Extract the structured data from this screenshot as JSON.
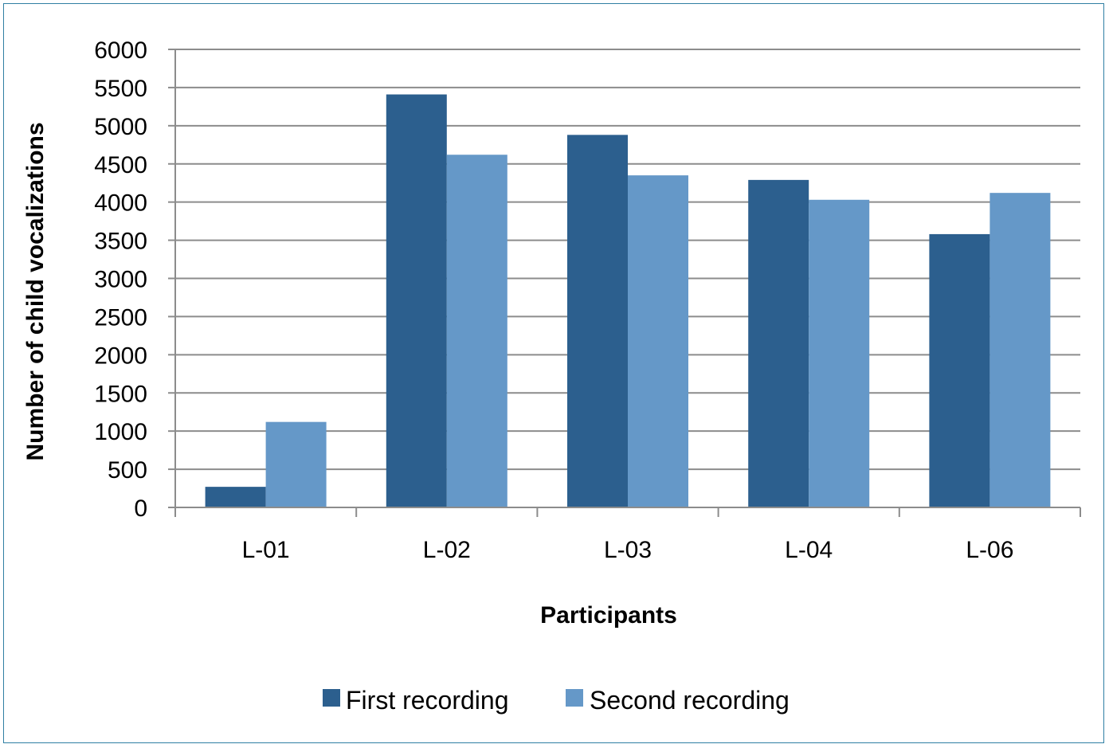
{
  "chart_data": {
    "type": "bar",
    "title": "",
    "xlabel": "Participants",
    "ylabel": "Number of child vocalizations",
    "categories": [
      "L-01",
      "L-02",
      "L-03",
      "L-04",
      "L-06"
    ],
    "series": [
      {
        "name": "First recording",
        "values": [
          270,
          5410,
          4880,
          4290,
          3580
        ],
        "color": "#2c5f8e"
      },
      {
        "name": "Second recording",
        "values": [
          1120,
          4620,
          4350,
          4030,
          4120
        ],
        "color": "#6598c8"
      }
    ],
    "yticks": [
      "0",
      "500",
      "1000",
      "1500",
      "2000",
      "2500",
      "3000",
      "3500",
      "4000",
      "4500",
      "5000",
      "5500",
      "6000"
    ],
    "ylim": [
      0,
      6000
    ],
    "grid": true,
    "legend_position": "bottom",
    "colors": {
      "gridline": "#8c8c8c",
      "axis": "#8c8c8c",
      "frame": "#2f7fa3"
    }
  }
}
